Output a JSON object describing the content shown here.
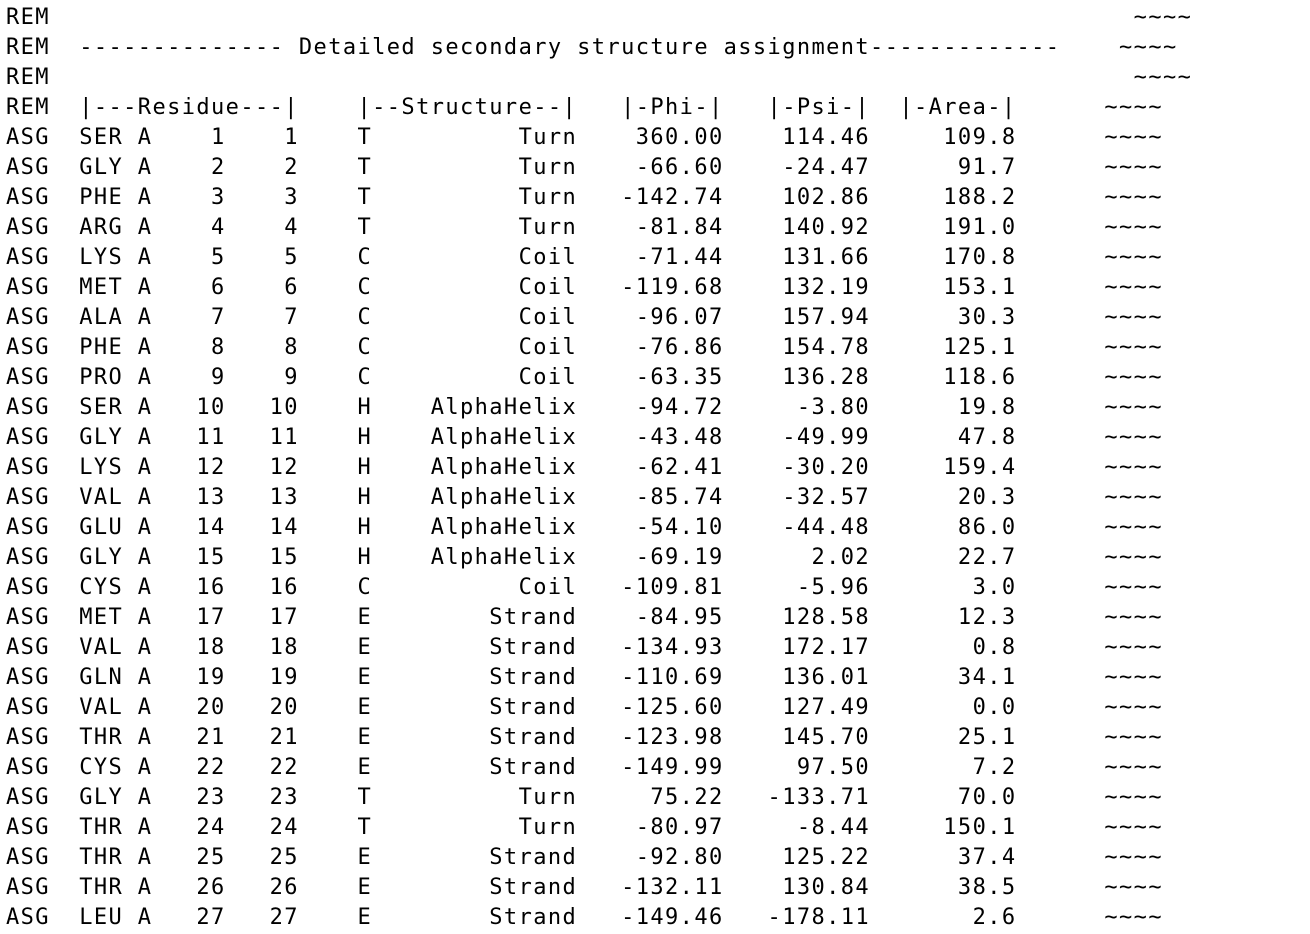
{
  "document": {
    "partial_top_line": "REM  ---- ---- ---- ---- ---- ---- ---- ---- ---- ---- ---- ---- ---- ---- ---- ---- ---- ---- ---- ---- ---- ---- ---- ---- ---- ---- ---- ----------",
    "lines": [
      "REM                                                                          ~~~~",
      "REM  -------------- Detailed secondary structure assignment-------------    ~~~~",
      "REM                                                                          ~~~~",
      "REM  |---Residue---|    |--Structure--|   |-Phi-|   |-Psi-|  |-Area-|      ~~~~",
      "ASG  SER A    1    1    T          Turn    360.00    114.46     109.8      ~~~~",
      "ASG  GLY A    2    2    T          Turn    -66.60    -24.47      91.7      ~~~~",
      "ASG  PHE A    3    3    T          Turn   -142.74    102.86     188.2      ~~~~",
      "ASG  ARG A    4    4    T          Turn    -81.84    140.92     191.0      ~~~~",
      "ASG  LYS A    5    5    C          Coil    -71.44    131.66     170.8      ~~~~",
      "ASG  MET A    6    6    C          Coil   -119.68    132.19     153.1      ~~~~",
      "ASG  ALA A    7    7    C          Coil    -96.07    157.94      30.3      ~~~~",
      "ASG  PHE A    8    8    C          Coil    -76.86    154.78     125.1      ~~~~",
      "ASG  PRO A    9    9    C          Coil    -63.35    136.28     118.6      ~~~~",
      "ASG  SER A   10   10    H    AlphaHelix    -94.72     -3.80      19.8      ~~~~",
      "ASG  GLY A   11   11    H    AlphaHelix    -43.48    -49.99      47.8      ~~~~",
      "ASG  LYS A   12   12    H    AlphaHelix    -62.41    -30.20     159.4      ~~~~",
      "ASG  VAL A   13   13    H    AlphaHelix    -85.74    -32.57      20.3      ~~~~",
      "ASG  GLU A   14   14    H    AlphaHelix    -54.10    -44.48      86.0      ~~~~",
      "ASG  GLY A   15   15    H    AlphaHelix    -69.19      2.02      22.7      ~~~~",
      "ASG  CYS A   16   16    C          Coil   -109.81     -5.96       3.0      ~~~~",
      "ASG  MET A   17   17    E        Strand    -84.95    128.58      12.3      ~~~~",
      "ASG  VAL A   18   18    E        Strand   -134.93    172.17       0.8      ~~~~",
      "ASG  GLN A   19   19    E        Strand   -110.69    136.01      34.1      ~~~~",
      "ASG  VAL A   20   20    E        Strand   -125.60    127.49       0.0      ~~~~",
      "ASG  THR A   21   21    E        Strand   -123.98    145.70      25.1      ~~~~",
      "ASG  CYS A   22   22    E        Strand   -149.99     97.50       7.2      ~~~~",
      "ASG  GLY A   23   23    T          Turn     75.22   -133.71      70.0      ~~~~",
      "ASG  THR A   24   24    T          Turn    -80.97     -8.44     150.1      ~~~~",
      "ASG  THR A   25   25    E        Strand    -92.80    125.22      37.4      ~~~~",
      "ASG  THR A   26   26    E        Strand   -132.11    130.84      38.5      ~~~~",
      "ASG  LEU A   27   27    E        Strand   -149.46   -178.11       2.6      ~~~~"
    ]
  }
}
